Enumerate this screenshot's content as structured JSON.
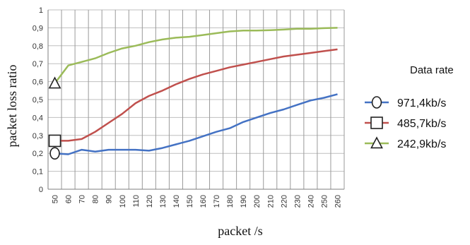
{
  "chart_data": {
    "type": "line",
    "title": "",
    "xlabel": "packet /s",
    "ylabel": "packet loss ratio",
    "x": [
      50,
      60,
      70,
      80,
      90,
      100,
      110,
      120,
      130,
      140,
      150,
      160,
      170,
      180,
      190,
      200,
      210,
      220,
      230,
      240,
      250,
      260
    ],
    "ylim": [
      0,
      1
    ],
    "yticks": [
      "0",
      "0,1",
      "0,2",
      "0,3",
      "0,4",
      "0,5",
      "0,6",
      "0,7",
      "0,8",
      "0,9",
      "1"
    ],
    "grid": "vertical and horizontal",
    "legend": {
      "title": "Data rate",
      "placement": "right"
    },
    "series": [
      {
        "name": "971,4kb/s",
        "color": "#4472c4",
        "marker": "circle",
        "values": [
          0.2,
          0.195,
          0.22,
          0.21,
          0.22,
          0.22,
          0.22,
          0.215,
          0.23,
          0.25,
          0.27,
          0.295,
          0.32,
          0.34,
          0.375,
          0.4,
          0.425,
          0.445,
          0.47,
          0.495,
          0.51,
          0.53
        ]
      },
      {
        "name": "485,7kb/s",
        "color": "#c0504d",
        "marker": "square",
        "values": [
          0.27,
          0.27,
          0.28,
          0.32,
          0.37,
          0.42,
          0.48,
          0.52,
          0.55,
          0.585,
          0.615,
          0.64,
          0.66,
          0.68,
          0.695,
          0.71,
          0.725,
          0.74,
          0.75,
          0.76,
          0.77,
          0.78
        ]
      },
      {
        "name": "242,9kb/s",
        "color": "#9bbb59",
        "marker": "triangle",
        "values": [
          0.59,
          0.69,
          0.71,
          0.73,
          0.76,
          0.785,
          0.8,
          0.82,
          0.835,
          0.845,
          0.85,
          0.86,
          0.87,
          0.88,
          0.885,
          0.885,
          0.887,
          0.89,
          0.895,
          0.895,
          0.898,
          0.9
        ]
      }
    ]
  }
}
